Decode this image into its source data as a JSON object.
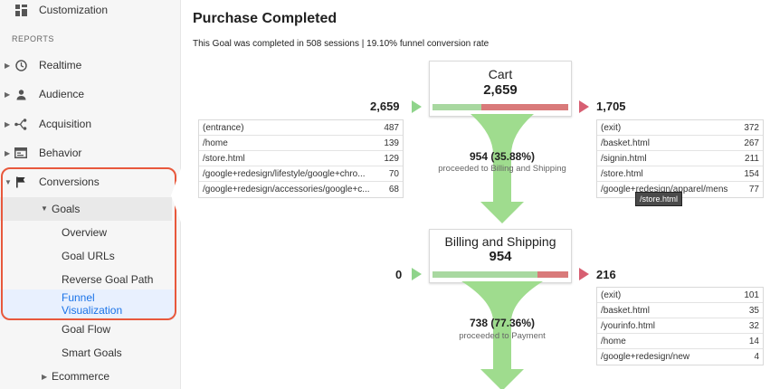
{
  "sidebar": {
    "customization": "Customization",
    "section": "REPORTS",
    "items": [
      {
        "label": "Realtime"
      },
      {
        "label": "Audience"
      },
      {
        "label": "Acquisition"
      },
      {
        "label": "Behavior"
      },
      {
        "label": "Conversions"
      }
    ],
    "goals": "Goals",
    "goal_items": [
      "Overview",
      "Goal URLs",
      "Reverse Goal Path",
      "Funnel Visualization",
      "Goal Flow",
      "Smart Goals"
    ],
    "ecommerce": "Ecommerce"
  },
  "main": {
    "title": "Purchase Completed",
    "summary": "This Goal was completed in 508 sessions | 19.10% funnel conversion rate"
  },
  "stages": [
    {
      "name": "Cart",
      "value": "2,659",
      "entrances": "2,659",
      "exits": "1,705",
      "continue_fraction": 0.36,
      "entrance_table": [
        {
          "path": "(entrance)",
          "count": "487"
        },
        {
          "path": "/home",
          "count": "139"
        },
        {
          "path": "/store.html",
          "count": "129"
        },
        {
          "path": "/google+redesign/lifestyle/google+chro...",
          "count": "70"
        },
        {
          "path": "/google+redesign/accessories/google+c...",
          "count": "68"
        }
      ],
      "exit_table": [
        {
          "path": "(exit)",
          "count": "372"
        },
        {
          "path": "/basket.html",
          "count": "267"
        },
        {
          "path": "/signin.html",
          "count": "211"
        },
        {
          "path": "/store.html",
          "count": "154"
        },
        {
          "path": "/google+redesign/apparel/mens",
          "count": "77"
        }
      ],
      "proceeded_pct": "954 (35.88%)",
      "proceeded_label": "proceeded to Billing and Shipping"
    },
    {
      "name": "Billing and Shipping",
      "value": "954",
      "entrances": "0",
      "exits": "216",
      "continue_fraction": 0.77,
      "exit_table": [
        {
          "path": "(exit)",
          "count": "101"
        },
        {
          "path": "/basket.html",
          "count": "35"
        },
        {
          "path": "/yourinfo.html",
          "count": "32"
        },
        {
          "path": "/home",
          "count": "14"
        },
        {
          "path": "/google+redesign/new",
          "count": "4"
        }
      ],
      "proceeded_pct": "738 (77.36%)",
      "proceeded_label": "proceeded to Payment"
    }
  ],
  "tooltip": "/store.html",
  "colors": {
    "continue": "#a8d8a0",
    "exit": "#d97a7a",
    "funnel": "#9fdc8e",
    "highlight": "#e8583c",
    "link": "#1a73e8"
  }
}
